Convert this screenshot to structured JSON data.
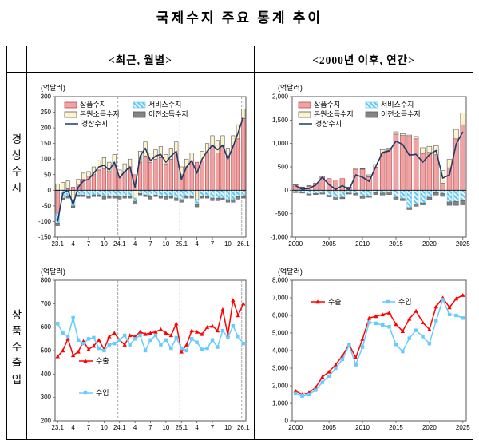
{
  "title": "국제수지 주요 통계 추이",
  "table": {
    "col_headers": [
      "<최근, 월별>",
      "<2000년 이후, 연간>"
    ],
    "row_headers": [
      "경상수지",
      "상품수출입"
    ]
  },
  "colors": {
    "goods_fill": "#F2A2A2",
    "goods_stroke": "#B4494C",
    "primary_fill": "#FFF3CC",
    "primary_stroke": "#5A5A5A",
    "service_bg": "#E4F5FD",
    "service_line": "#5FC8F0",
    "service_stroke": "#79CDEF",
    "transfer_fill": "#848484",
    "transfer_stroke": "#5A5A5A",
    "current_line": "#1F3A68",
    "export_line": "#FF0000",
    "import_line": "#66CCFF",
    "frame": "#595959",
    "axis_text": "#000000"
  },
  "chart_data": [
    {
      "id": "current-account-monthly",
      "type": "bar",
      "unit": "(억달러)",
      "ylim": [
        -150,
        300
      ],
      "ytick_step": 50,
      "n": 37,
      "tick_labels": [
        "23.1",
        "4",
        "7",
        "10",
        "24.1",
        "4",
        "7",
        "10",
        "25.1",
        "4",
        "7",
        "10",
        "26.1"
      ],
      "tick_indices": [
        0,
        3,
        6,
        9,
        12,
        15,
        18,
        21,
        24,
        27,
        30,
        33,
        36
      ],
      "vline_indices": [
        12,
        24,
        36
      ],
      "bar_series": [
        {
          "name": "상품수지",
          "style": "pink",
          "values": [
            -75,
            0,
            5,
            10,
            20,
            35,
            45,
            50,
            65,
            70,
            60,
            80,
            45,
            60,
            75,
            50,
            90,
            110,
            90,
            100,
            105,
            85,
            100,
            120,
            50,
            75,
            95,
            90,
            95,
            120,
            140,
            120,
            140,
            105,
            145,
            165,
            230
          ]
        },
        {
          "name": "본원소득수지",
          "style": "cream",
          "values": [
            20,
            25,
            25,
            -30,
            15,
            20,
            15,
            25,
            30,
            35,
            30,
            35,
            20,
            25,
            25,
            -25,
            35,
            45,
            30,
            30,
            35,
            30,
            35,
            35,
            25,
            25,
            25,
            -30,
            30,
            30,
            35,
            40,
            35,
            30,
            30,
            45,
            30
          ]
        },
        {
          "name": "서비스수지",
          "style": "hatch",
          "values": [
            -30,
            -25,
            -20,
            -20,
            -15,
            -15,
            -20,
            -15,
            -15,
            -20,
            -20,
            -20,
            -20,
            -20,
            -20,
            -10,
            -10,
            -15,
            -20,
            -15,
            -20,
            -20,
            -20,
            -25,
            -30,
            -20,
            -20,
            -15,
            -20,
            -20,
            -25,
            -25,
            -25,
            -30,
            -30,
            -20,
            -20
          ]
        },
        {
          "name": "이전소득수지",
          "style": "gray",
          "values": [
            -8,
            -5,
            -5,
            -5,
            -5,
            -5,
            -5,
            -5,
            -5,
            -8,
            -5,
            -5,
            -8,
            -5,
            -5,
            -8,
            -5,
            -5,
            -8,
            -5,
            -5,
            -8,
            -5,
            -8,
            -8,
            -5,
            -5,
            -8,
            -5,
            -5,
            -8,
            -8,
            -5,
            -8,
            -8,
            -8,
            -5
          ]
        }
      ],
      "line_series": [
        {
          "name": "경상수지",
          "style": "navy",
          "values": [
            -100,
            -10,
            0,
            -45,
            10,
            30,
            35,
            55,
            75,
            80,
            65,
            90,
            40,
            60,
            75,
            10,
            110,
            135,
            95,
            110,
            115,
            90,
            110,
            125,
            35,
            75,
            95,
            55,
            100,
            125,
            145,
            130,
            145,
            100,
            140,
            185,
            235
          ]
        }
      ],
      "legend_type": "grid2"
    },
    {
      "id": "current-account-annual",
      "type": "bar",
      "unit": "(억달러)",
      "ylim": [
        -1000,
        2000
      ],
      "ytick_step": 500,
      "n": 26,
      "tick_labels": [
        "2000",
        "2005",
        "2010",
        "2015",
        "2020",
        "2025"
      ],
      "tick_indices": [
        0,
        5,
        10,
        15,
        20,
        25
      ],
      "vline_indices": [],
      "bar_series": [
        {
          "name": "상품수지",
          "style": "pink",
          "values": [
            120,
            60,
            90,
            140,
            280,
            250,
            220,
            250,
            60,
            450,
            450,
            290,
            490,
            790,
            860,
            1200,
            1170,
            1150,
            1100,
            790,
            810,
            760,
            150,
            480,
            1100,
            1400
          ]
        },
        {
          "name": "본원소득수지",
          "style": "cream",
          "values": [
            5,
            10,
            10,
            10,
            20,
            -20,
            -30,
            -30,
            10,
            20,
            10,
            40,
            60,
            80,
            40,
            50,
            40,
            30,
            50,
            120,
            130,
            190,
            270,
            180,
            200,
            250
          ]
        },
        {
          "name": "서비스수지",
          "style": "hatch",
          "values": [
            -30,
            -40,
            -80,
            -70,
            -60,
            -90,
            -130,
            -120,
            -60,
            -70,
            -140,
            -120,
            -50,
            -60,
            -40,
            -150,
            -180,
            -370,
            -290,
            -270,
            -150,
            -50,
            -70,
            -250,
            -240,
            -220
          ]
        },
        {
          "name": "이전소득수지",
          "style": "gray",
          "values": [
            -20,
            -20,
            -20,
            -20,
            -20,
            -30,
            -30,
            -30,
            -20,
            -30,
            -30,
            -30,
            -40,
            -40,
            -50,
            -40,
            -40,
            -40,
            -50,
            -40,
            -50,
            -50,
            -60,
            -70,
            -80,
            -90
          ]
        }
      ],
      "line_series": [
        {
          "name": "경상수지",
          "style": "navy",
          "values": [
            100,
            20,
            40,
            110,
            280,
            120,
            20,
            100,
            10,
            330,
            280,
            190,
            510,
            810,
            840,
            1050,
            980,
            750,
            770,
            600,
            760,
            850,
            260,
            330,
            990,
            1250
          ]
        }
      ],
      "legend_type": "grid2"
    },
    {
      "id": "trade-monthly",
      "type": "line",
      "unit": "(억달러)",
      "ylim": [
        200,
        800
      ],
      "ytick_step": 100,
      "n": 37,
      "tick_labels": [
        "23.1",
        "4",
        "7",
        "10",
        "24.1",
        "4",
        "7",
        "10",
        "25.1",
        "4",
        "7",
        "10",
        "26.1"
      ],
      "tick_indices": [
        0,
        3,
        6,
        9,
        12,
        15,
        18,
        21,
        24,
        27,
        30,
        33,
        36
      ],
      "vline_indices": [
        12,
        24,
        36
      ],
      "line_series": [
        {
          "name": "수출",
          "style": "red",
          "values": [
            475,
            500,
            550,
            480,
            495,
            540,
            505,
            520,
            545,
            505,
            560,
            575,
            545,
            525,
            565,
            560,
            580,
            570,
            575,
            580,
            590,
            575,
            565,
            615,
            495,
            525,
            585,
            580,
            570,
            600,
            605,
            585,
            675,
            565,
            715,
            650,
            700
          ]
        },
        {
          "name": "수입",
          "style": "sky",
          "values": [
            615,
            575,
            560,
            640,
            545,
            530,
            550,
            555,
            510,
            500,
            525,
            530,
            545,
            565,
            525,
            550,
            565,
            500,
            545,
            565,
            525,
            545,
            510,
            555,
            510,
            500,
            550,
            535,
            505,
            510,
            545,
            515,
            585,
            555,
            605,
            560,
            530
          ]
        }
      ],
      "legend_type": "vstack"
    },
    {
      "id": "trade-annual",
      "type": "line",
      "unit": "(억달러)",
      "ylim": [
        0,
        8000
      ],
      "ytick_step": 1000,
      "n": 26,
      "tick_labels": [
        "2000",
        "2005",
        "2010",
        "2015",
        "2020",
        "2025"
      ],
      "tick_indices": [
        0,
        5,
        10,
        15,
        20,
        25
      ],
      "vline_indices": [],
      "line_series": [
        {
          "name": "수출",
          "style": "red",
          "values": [
            1700,
            1500,
            1600,
            1900,
            2500,
            2800,
            3200,
            3700,
            4350,
            3600,
            4650,
            5850,
            5950,
            6050,
            6150,
            5500,
            5100,
            5800,
            6250,
            5600,
            5200,
            6500,
            7000,
            6450,
            6950,
            7150
          ]
        },
        {
          "name": "수입",
          "style": "sky",
          "values": [
            1550,
            1400,
            1500,
            1750,
            2200,
            2550,
            3000,
            3500,
            4300,
            3200,
            4200,
            5600,
            5550,
            5450,
            5350,
            4350,
            3950,
            4700,
            5150,
            4800,
            4400,
            5700,
            6900,
            6050,
            6000,
            5850
          ]
        }
      ],
      "legend_type": "hpair"
    }
  ]
}
